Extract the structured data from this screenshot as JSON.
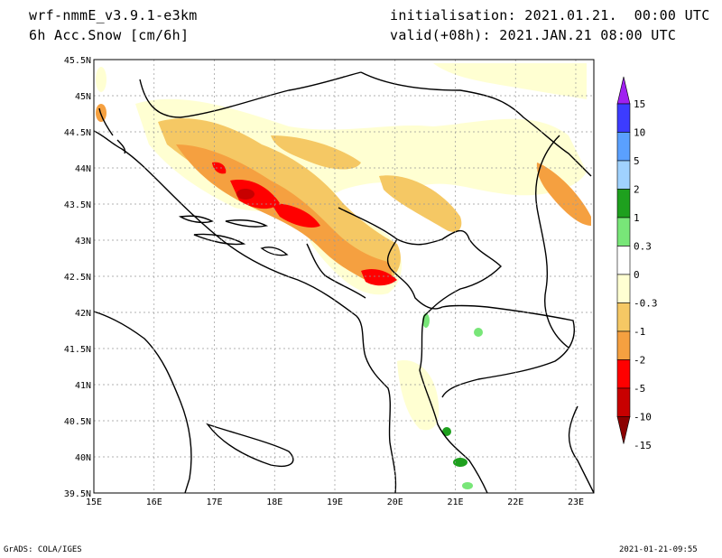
{
  "header": {
    "model": "wrf-nmmE_v3.9.1-e3km",
    "field": "6h Acc.Snow [cm/6h]",
    "initialisation": "initialisation: 2021.01.21.  00:00 UTC",
    "valid": "valid(+08h): 2021.JAN.21 08:00 UTC"
  },
  "map": {
    "lon_labels": [
      "15E",
      "16E",
      "17E",
      "18E",
      "19E",
      "20E",
      "21E",
      "22E",
      "23E"
    ],
    "lat_labels": [
      "45.5N",
      "45N",
      "44.5N",
      "44N",
      "43.5N",
      "43N",
      "42.5N",
      "42N",
      "41.5N",
      "41N",
      "40.5N",
      "40N",
      "39.5N"
    ],
    "lon_range": [
      15,
      23.3
    ],
    "lat_range": [
      39.5,
      45.5
    ],
    "grid": true
  },
  "legend": {
    "labels": [
      "15",
      "10",
      "5",
      "2",
      "1",
      "0.3",
      "0",
      "-0.3",
      "-1",
      "-2",
      "-5",
      "-10",
      "-15"
    ],
    "colors": [
      "#a020f0",
      "#3c3cff",
      "#5aa0ff",
      "#a0d2ff",
      "#1ea01e",
      "#78e678",
      "#ffffff",
      "#ffffd2",
      "#f5c864",
      "#f5a040",
      "#ff0000",
      "#c80000",
      "#8b0000"
    ]
  },
  "footer": {
    "left": "GrADS: COLA/IGES",
    "right": "2021-01-21-09:55"
  }
}
